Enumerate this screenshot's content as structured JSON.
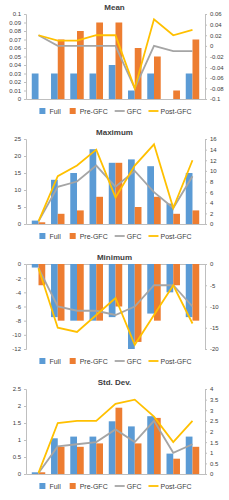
{
  "chart_data": [
    {
      "type": "bar",
      "title": "Mean",
      "categories": [
        null,
        null,
        null,
        null,
        null,
        null,
        null,
        null,
        null
      ],
      "series": [
        {
          "name": "Full",
          "color": "#5b9bd5",
          "type": "bar",
          "values": [
            0.03,
            0.03,
            0.03,
            0.03,
            0.04,
            0.01,
            0.03,
            0,
            0.03
          ]
        },
        {
          "name": "Pre-GFC",
          "color": "#ed7d31",
          "type": "bar",
          "values": [
            0,
            0.07,
            0.08,
            0.09,
            0.09,
            0.06,
            0.05,
            0.01,
            0.07
          ]
        },
        {
          "name": "GFC",
          "color": "#a5a5a5",
          "type": "line",
          "axis": "y2",
          "values": [
            0.02,
            0,
            0,
            0,
            0,
            -0.08,
            0,
            -0.01,
            -0.01
          ]
        },
        {
          "name": "Post-GFC",
          "color": "#ffc000",
          "type": "line",
          "axis": "y2",
          "values": [
            0.02,
            0.01,
            0.01,
            0.02,
            0.02,
            -0.08,
            0.05,
            0.02,
            0.03
          ]
        }
      ],
      "ylim": [
        0,
        0.1
      ],
      "yticks": [
        0,
        0.01,
        0.02,
        0.03,
        0.04,
        0.05,
        0.06,
        0.07,
        0.08,
        0.09,
        0.1
      ],
      "y2lim": [
        -0.1,
        0.06
      ],
      "y2ticks": [
        -0.1,
        -0.08,
        -0.06,
        -0.04,
        -0.02,
        0,
        0.02,
        0.04,
        0.06
      ],
      "legend": "bottom"
    },
    {
      "type": "bar",
      "title": "Maximum",
      "categories": [
        null,
        null,
        null,
        null,
        null,
        null,
        null,
        null,
        null
      ],
      "series": [
        {
          "name": "Full",
          "color": "#5b9bd5",
          "type": "bar",
          "values": [
            1,
            13,
            15,
            22,
            18,
            19,
            17,
            6,
            15
          ]
        },
        {
          "name": "Pre-GFC",
          "color": "#ed7d31",
          "type": "bar",
          "values": [
            0.5,
            3,
            4,
            8,
            18,
            5,
            8,
            3,
            4
          ]
        },
        {
          "name": "GFC",
          "color": "#a5a5a5",
          "type": "line",
          "axis": "y2",
          "values": [
            0.5,
            7,
            8,
            11,
            7,
            10,
            6,
            3,
            9
          ]
        },
        {
          "name": "Post-GFC",
          "color": "#ffc000",
          "type": "line",
          "axis": "y2",
          "values": [
            0.5,
            9,
            11,
            14,
            5,
            11,
            15,
            3,
            12
          ]
        }
      ],
      "ylim": [
        0,
        25
      ],
      "yticks": [
        0,
        5,
        10,
        15,
        20,
        25
      ],
      "y2lim": [
        0,
        16
      ],
      "y2ticks": [
        0,
        2,
        4,
        6,
        8,
        10,
        12,
        14,
        16
      ],
      "legend": "bottom"
    },
    {
      "type": "bar",
      "title": "Minimum",
      "categories": [
        null,
        null,
        null,
        null,
        null,
        null,
        null,
        null,
        null
      ],
      "series": [
        {
          "name": "Full",
          "color": "#5b9bd5",
          "type": "bar",
          "values": [
            -0.5,
            -7.5,
            -8,
            -8,
            -7.5,
            -12,
            -7,
            -4,
            -7.5
          ]
        },
        {
          "name": "Pre-GFC",
          "color": "#ed7d31",
          "type": "bar",
          "values": [
            -3,
            -8,
            -8,
            -8,
            -6,
            -11,
            -8,
            -3,
            -8
          ]
        },
        {
          "name": "GFC",
          "color": "#a5a5a5",
          "type": "line",
          "axis": "y2",
          "values": [
            -1,
            -10,
            -11,
            -11,
            -12,
            -10,
            -5,
            -5,
            -10
          ]
        },
        {
          "name": "Post-GFC",
          "color": "#ffc000",
          "type": "line",
          "axis": "y2",
          "values": [
            -1,
            -15,
            -16,
            -12,
            -8,
            -19,
            -12,
            -5,
            -14
          ]
        }
      ],
      "ylim": [
        -12,
        0
      ],
      "yticks": [
        -12,
        -10,
        -8,
        -6,
        -4,
        -2,
        0
      ],
      "y2lim": [
        -20,
        0
      ],
      "y2ticks": [
        -20,
        -15,
        -10,
        -5,
        0
      ],
      "legend": "bottom"
    },
    {
      "type": "bar",
      "title": "Std. Dev.",
      "categories": [
        null,
        null,
        null,
        null,
        null,
        null,
        null,
        null,
        null
      ],
      "series": [
        {
          "name": "Full",
          "color": "#5b9bd5",
          "type": "bar",
          "values": [
            0.05,
            1.05,
            1.1,
            1.1,
            1.55,
            1.4,
            1.7,
            0.6,
            1.1
          ]
        },
        {
          "name": "Pre-GFC",
          "color": "#ed7d31",
          "type": "bar",
          "values": [
            0.05,
            0.8,
            0.8,
            0.9,
            1.95,
            0.9,
            1.65,
            0.45,
            0.8
          ]
        },
        {
          "name": "GFC",
          "color": "#a5a5a5",
          "type": "line",
          "axis": "y2",
          "values": [
            0.05,
            1.3,
            1.4,
            1.5,
            2.1,
            1.5,
            2.5,
            1,
            1.4
          ]
        },
        {
          "name": "Post-GFC",
          "color": "#ffc000",
          "type": "line",
          "axis": "y2",
          "values": [
            0.05,
            2.4,
            2.5,
            2.5,
            3.3,
            3.5,
            2.7,
            1.5,
            2.5
          ]
        }
      ],
      "ylim": [
        0,
        2.5
      ],
      "yticks": [
        0,
        0.5,
        1,
        1.5,
        2,
        2.5
      ],
      "y2lim": [
        0,
        4
      ],
      "y2ticks": [
        0,
        0.5,
        1,
        1.5,
        2,
        2.5,
        3,
        3.5,
        4
      ],
      "legend": "bottom"
    }
  ]
}
